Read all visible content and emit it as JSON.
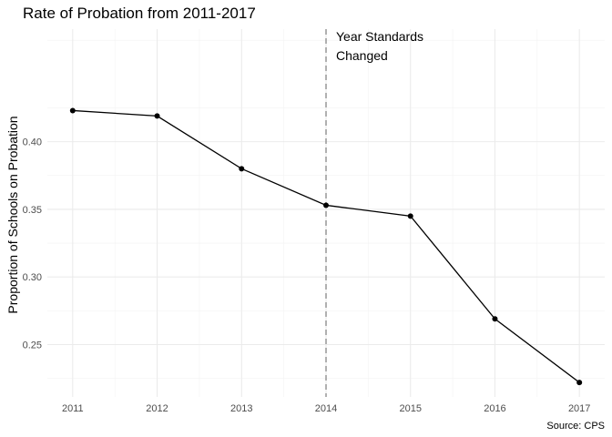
{
  "chart_data": {
    "type": "line",
    "title": "Rate of Probation from 2011-2017",
    "xlabel": "",
    "ylabel": "Proportion of Schools on Probation",
    "caption": "Source: CPS",
    "x": [
      2011,
      2012,
      2013,
      2014,
      2015,
      2016,
      2017
    ],
    "x_tick_labels": [
      "2011",
      "2012",
      "2013",
      "2014",
      "2015",
      "2016",
      "2017"
    ],
    "series": [
      {
        "values": [
          0.423,
          0.419,
          0.38,
          0.353,
          0.345,
          0.269,
          0.222
        ],
        "color": "#000000"
      }
    ],
    "xlim": [
      2010.7,
      2017.3
    ],
    "ylim": [
      0.2113,
      0.4832
    ],
    "y_ticks": [
      0.25,
      0.3,
      0.35,
      0.4
    ],
    "y_tick_labels": [
      "0.25",
      "0.30",
      "0.35",
      "0.40"
    ],
    "grid": true,
    "legend": "none",
    "vline": {
      "x": 2014,
      "style": "dashed",
      "color": "#888888",
      "label_lines": [
        "Year Standards",
        "Changed"
      ]
    }
  }
}
